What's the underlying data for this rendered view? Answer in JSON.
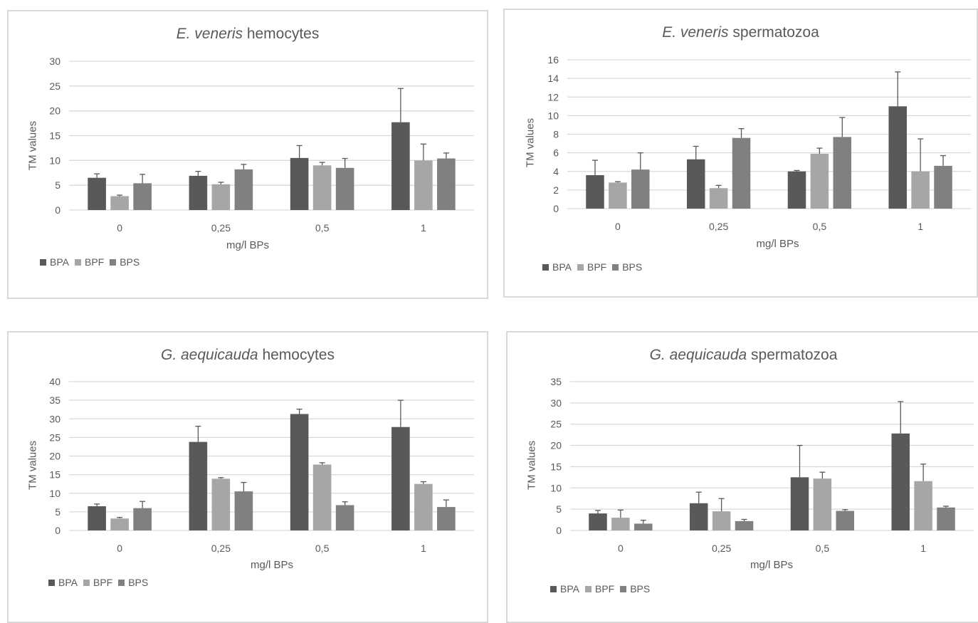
{
  "colors": {
    "BPA": "#595959",
    "BPF": "#a6a6a6",
    "BPS": "#808080",
    "grid": "#d9d9d9",
    "text": "#595959"
  },
  "chart_data": [
    {
      "type": "bar",
      "title_italic": "E. veneris",
      "title_rest": " hemocytes",
      "xlabel": "mg/l BPs",
      "ylabel": "TM values",
      "categories": [
        "0",
        "0,25",
        "0,5",
        "1"
      ],
      "ylim": [
        0,
        30
      ],
      "yticks": [
        "0",
        "5",
        "10",
        "15",
        "20",
        "25",
        "30"
      ],
      "legend_position": "bottom-left",
      "series": [
        {
          "name": "BPA",
          "values": [
            6.5,
            6.9,
            10.5,
            17.7
          ],
          "errors": [
            0.8,
            0.9,
            2.5,
            6.8
          ]
        },
        {
          "name": "BPF",
          "values": [
            2.8,
            5.2,
            9.0,
            10.0
          ],
          "errors": [
            0.2,
            0.4,
            0.6,
            3.3
          ]
        },
        {
          "name": "BPS",
          "values": [
            5.4,
            8.2,
            8.5,
            10.4
          ],
          "errors": [
            1.8,
            1.0,
            1.9,
            1.1
          ]
        }
      ]
    },
    {
      "type": "bar",
      "title_italic": "E. veneris",
      "title_rest": " spermatozoa",
      "xlabel": "mg/l BPs",
      "ylabel": "TM values",
      "categories": [
        "0",
        "0,25",
        "0,5",
        "1"
      ],
      "ylim": [
        0,
        16
      ],
      "yticks": [
        "0",
        "2",
        "4",
        "6",
        "8",
        "10",
        "12",
        "14",
        "16"
      ],
      "legend_position": "bottom-left",
      "series": [
        {
          "name": "BPA",
          "values": [
            3.6,
            5.3,
            4.0,
            11.0
          ],
          "errors": [
            1.6,
            1.4,
            0.1,
            3.7
          ]
        },
        {
          "name": "BPF",
          "values": [
            2.8,
            2.2,
            5.9,
            4.0
          ],
          "errors": [
            0.1,
            0.3,
            0.6,
            3.5
          ]
        },
        {
          "name": "BPS",
          "values": [
            4.2,
            7.6,
            7.7,
            4.6
          ],
          "errors": [
            1.8,
            1.0,
            2.1,
            1.1
          ]
        }
      ]
    },
    {
      "type": "bar",
      "title_italic": "G. aequicauda",
      "title_rest": " hemocytes",
      "xlabel": "mg/l BPs",
      "ylabel": "TM values",
      "categories": [
        "0",
        "0,25",
        "0,5",
        "1"
      ],
      "ylim": [
        0,
        40
      ],
      "yticks": [
        "0",
        "5",
        "10",
        "15",
        "20",
        "25",
        "30",
        "35",
        "40"
      ],
      "legend_position": "bottom-left",
      "series": [
        {
          "name": "BPA",
          "values": [
            6.5,
            23.8,
            31.3,
            27.8
          ],
          "errors": [
            0.6,
            4.2,
            1.3,
            7.2
          ]
        },
        {
          "name": "BPF",
          "values": [
            3.2,
            13.9,
            17.7,
            12.5
          ],
          "errors": [
            0.3,
            0.3,
            0.5,
            0.6
          ]
        },
        {
          "name": "BPS",
          "values": [
            6.0,
            10.5,
            6.8,
            6.3
          ],
          "errors": [
            1.8,
            2.4,
            0.9,
            1.9
          ]
        }
      ]
    },
    {
      "type": "bar",
      "title_italic": "G. aequicauda",
      "title_rest": " spermatozoa",
      "xlabel": "mg/l BPs",
      "ylabel": "TM values",
      "categories": [
        "0",
        "0,25",
        "0,5",
        "1"
      ],
      "ylim": [
        0,
        35
      ],
      "yticks": [
        "0",
        "5",
        "10",
        "15",
        "20",
        "25",
        "30",
        "35"
      ],
      "legend_position": "bottom-left",
      "series": [
        {
          "name": "BPA",
          "values": [
            4.0,
            6.4,
            12.5,
            22.8
          ],
          "errors": [
            0.7,
            2.6,
            7.5,
            7.5
          ]
        },
        {
          "name": "BPF",
          "values": [
            3.0,
            4.5,
            12.2,
            11.6
          ],
          "errors": [
            1.8,
            3.0,
            1.5,
            4.0
          ]
        },
        {
          "name": "BPS",
          "values": [
            1.6,
            2.2,
            4.6,
            5.4
          ],
          "errors": [
            0.8,
            0.4,
            0.3,
            0.3
          ]
        }
      ]
    }
  ]
}
